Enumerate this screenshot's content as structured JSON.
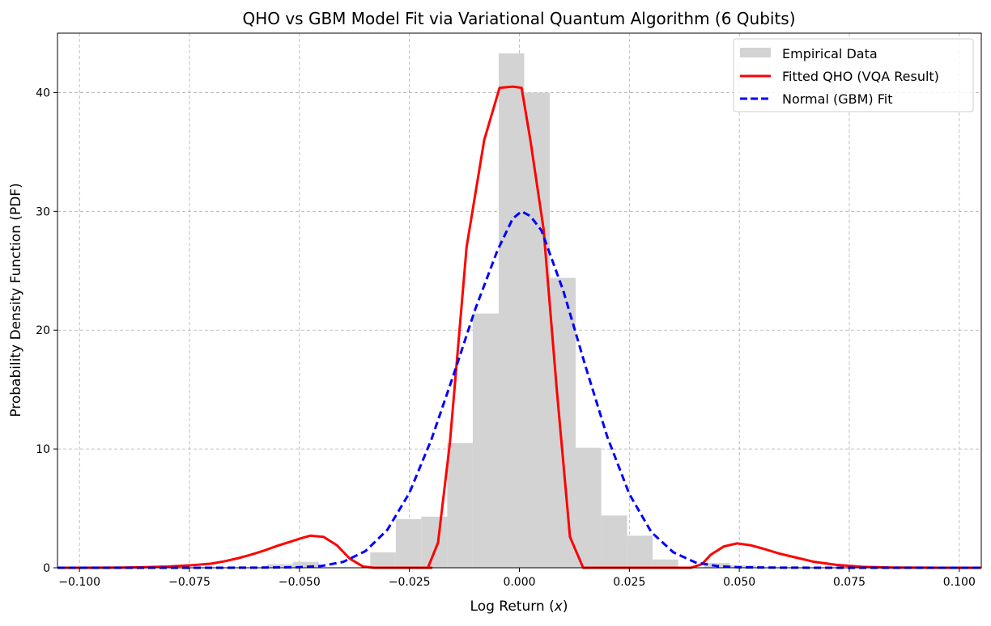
{
  "chart_data": {
    "type": "bar+line",
    "title": "QHO vs GBM Model Fit via Variational Quantum Algorithm (6 Qubits)",
    "xlabel_main": "Log Return (",
    "xlabel_var": "x",
    "xlabel_end": ")",
    "ylabel": "Probability Density Function (PDF)",
    "xlim": [
      -0.105,
      0.105
    ],
    "ylim": [
      0,
      45
    ],
    "grid": true,
    "legend_position": "top-right",
    "x_ticks": [
      -0.1,
      -0.075,
      -0.05,
      -0.025,
      0.0,
      0.025,
      0.05,
      0.075,
      0.1
    ],
    "x_tick_labels": [
      "−0.100",
      "−0.075",
      "−0.050",
      "−0.025",
      "0.000",
      "0.025",
      "0.050",
      "0.075",
      "0.100"
    ],
    "y_ticks": [
      0,
      10,
      20,
      30,
      40
    ],
    "y_tick_labels": [
      "0",
      "10",
      "20",
      "30",
      "40"
    ],
    "colors": {
      "histogram": "#d3d3d3",
      "qho": "#ff0000",
      "normal": "#0000ff",
      "grid": "#b0b0b0"
    },
    "histogram": {
      "name": "Empirical Data",
      "bin_edges": [
        -0.0573,
        -0.0515,
        -0.0456,
        -0.0398,
        -0.0339,
        -0.0281,
        -0.0223,
        -0.0164,
        -0.0106,
        -0.0047,
        0.0011,
        0.0069,
        0.0128,
        0.0186,
        0.0245,
        0.0303,
        0.0361,
        0.042,
        0.0478,
        0.0537
      ],
      "counts": [
        0.3,
        0.5,
        0.0,
        0.0,
        1.3,
        4.1,
        4.3,
        10.5,
        21.4,
        43.3,
        40.0,
        24.4,
        10.1,
        4.4,
        2.7,
        0.7,
        0.0,
        0.4,
        0.2
      ]
    },
    "series": [
      {
        "name": "Fitted QHO (VQA Result)",
        "x": [
          -0.105,
          -0.1,
          -0.09,
          -0.085,
          -0.08,
          -0.075,
          -0.07,
          -0.067,
          -0.064,
          -0.061,
          -0.058,
          -0.055,
          -0.052,
          -0.0495,
          -0.0475,
          -0.0445,
          -0.0415,
          -0.0385,
          -0.0355,
          -0.033,
          -0.03,
          -0.02,
          -0.0208,
          -0.0185,
          -0.0158,
          -0.012,
          -0.008,
          -0.0045,
          -0.0015,
          0.0005,
          0.0025,
          0.0055,
          0.0085,
          0.0115,
          0.0145,
          0.0175,
          0.0195,
          0.0215,
          0.03,
          0.039,
          0.0415,
          0.0435,
          0.0465,
          0.0495,
          0.0525,
          0.0555,
          0.059,
          0.063,
          0.067,
          0.072,
          0.078,
          0.085,
          0.095,
          0.105
        ],
        "y": [
          0.0,
          0.0,
          0.02,
          0.05,
          0.1,
          0.2,
          0.35,
          0.55,
          0.8,
          1.1,
          1.45,
          1.85,
          2.2,
          2.5,
          2.7,
          2.6,
          1.9,
          0.75,
          0.1,
          0.0,
          0.0,
          0.0,
          0.0,
          2.1,
          10.5,
          27.0,
          36.0,
          40.4,
          40.5,
          40.4,
          36.0,
          28.5,
          15.0,
          2.6,
          0.0,
          0.0,
          0.0,
          0.0,
          0.0,
          0.0,
          0.3,
          1.1,
          1.8,
          2.05,
          1.9,
          1.6,
          1.2,
          0.85,
          0.5,
          0.25,
          0.08,
          0.02,
          0.0,
          0.0
        ]
      },
      {
        "name": "Normal (GBM) Fit",
        "x": [
          -0.105,
          -0.09,
          -0.08,
          -0.07,
          -0.06,
          -0.05,
          -0.045,
          -0.04,
          -0.035,
          -0.03,
          -0.025,
          -0.02,
          -0.015,
          -0.01,
          -0.005,
          -0.0015,
          0.0005,
          0.0025,
          0.005,
          0.01,
          0.015,
          0.02,
          0.025,
          0.03,
          0.035,
          0.04,
          0.045,
          0.05,
          0.06,
          0.07,
          0.08,
          0.09,
          0.105
        ],
        "y": [
          0,
          0,
          0,
          0,
          0.01,
          0.05,
          0.15,
          0.5,
          1.4,
          3.2,
          6.3,
          10.8,
          16.2,
          21.8,
          26.7,
          29.4,
          30.0,
          29.6,
          28.4,
          23.3,
          17.0,
          11.0,
          6.2,
          3.0,
          1.3,
          0.45,
          0.14,
          0.04,
          0.01,
          0,
          0,
          0,
          0
        ]
      }
    ],
    "legend": [
      {
        "label": "Empirical Data",
        "kind": "patch"
      },
      {
        "label": "Fitted QHO (VQA Result)",
        "kind": "solid"
      },
      {
        "label": "Normal (GBM) Fit",
        "kind": "dashed"
      }
    ]
  }
}
